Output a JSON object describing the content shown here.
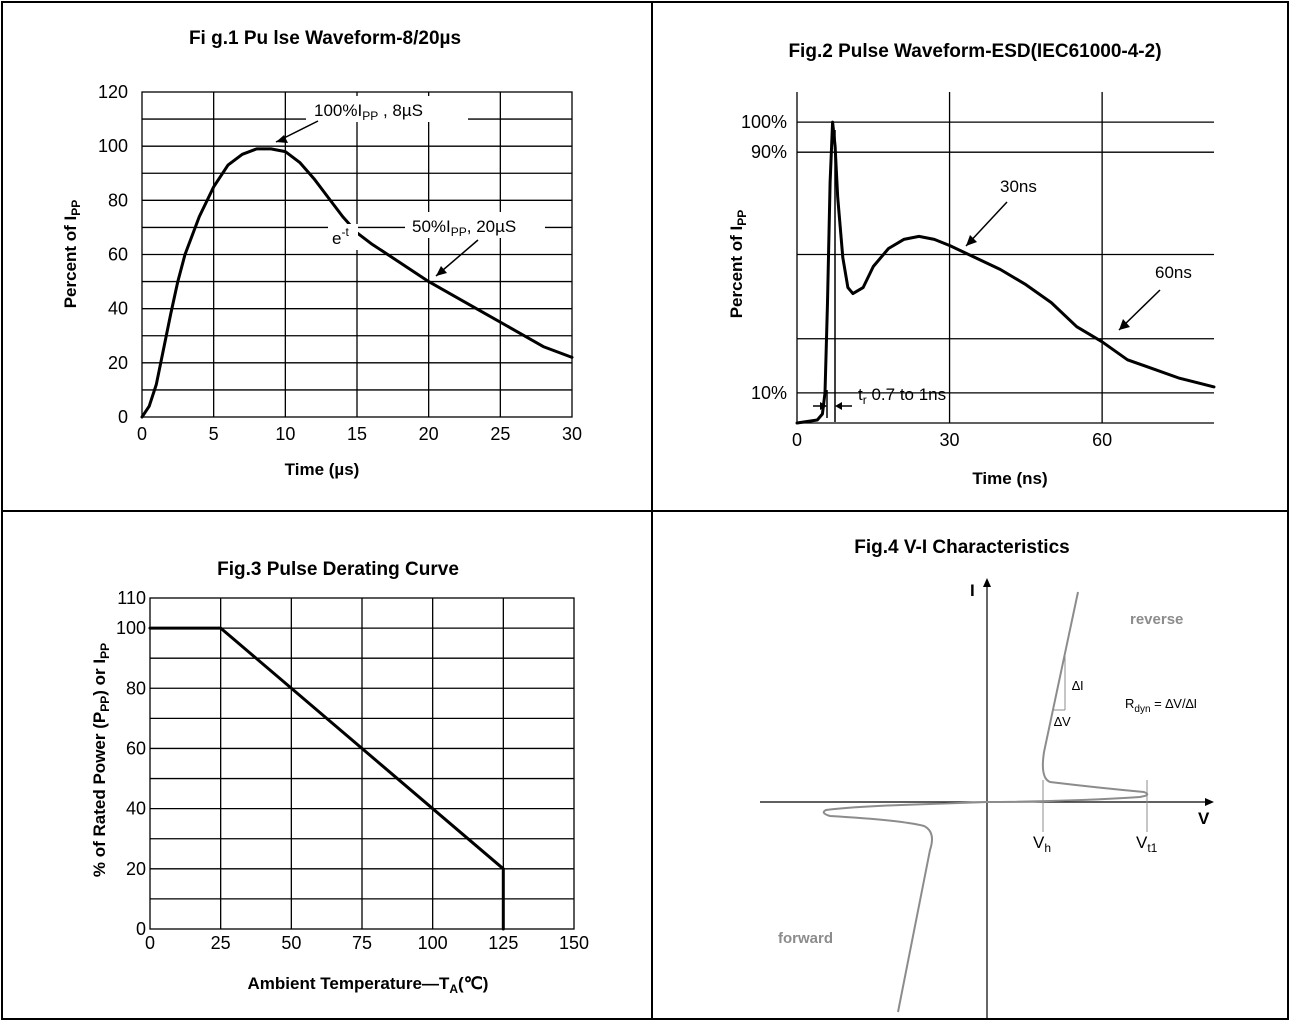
{
  "chart_data": [
    {
      "type": "line",
      "title": "Fi g.1 Pu lse Waveform-8/20µs",
      "xlabel": "Time (µs)",
      "ylabel_main": "Percent of I",
      "ylabel_sub": "PP",
      "xlim": [
        0,
        30
      ],
      "ylim": [
        0,
        120
      ],
      "xticks": [
        "0",
        "5",
        "10",
        "15",
        "20",
        "25",
        "30"
      ],
      "yticks": [
        "0",
        "20",
        "40",
        "60",
        "80",
        "100",
        "120"
      ],
      "grid": true,
      "x": [
        0,
        0.5,
        1,
        1.5,
        2,
        2.5,
        3,
        4,
        5,
        6,
        7,
        8,
        9,
        10,
        11,
        12,
        13,
        14,
        15,
        16,
        18,
        20,
        22,
        24,
        26,
        28,
        30
      ],
      "y": [
        0,
        4,
        12,
        25,
        38,
        50,
        60,
        74,
        85,
        93,
        97,
        99,
        99,
        98,
        94,
        88,
        81,
        74,
        68,
        64,
        57,
        50,
        44,
        38,
        32,
        26,
        22
      ],
      "annotations": [
        {
          "main": "100%I",
          "sub": "PP",
          "tail": " , 8µS"
        },
        {
          "main": "50%I",
          "sub": "PP",
          "tail": ", 20µS"
        },
        {
          "main": "e",
          "sup": "-t"
        }
      ]
    },
    {
      "type": "line",
      "title": "Fig.2 Pulse Waveform-ESD(IEC61000-4-2)",
      "xlabel": "Time (ns)",
      "ylabel_main": "Percent of I",
      "ylabel_sub": "PP",
      "xlim": [
        0,
        82
      ],
      "ylim": [
        0,
        110
      ],
      "xticks": [
        "0",
        "30",
        "60"
      ],
      "yticks": [
        "10%",
        "90%",
        "100%"
      ],
      "grid": true,
      "x": [
        0,
        4,
        5,
        5.5,
        6,
        6.5,
        7,
        7.5,
        8,
        9,
        10,
        11,
        13,
        15,
        18,
        21,
        24,
        27,
        30,
        35,
        40,
        45,
        50,
        55,
        60,
        65,
        70,
        75,
        82
      ],
      "y": [
        0,
        1,
        3,
        10,
        40,
        80,
        100,
        92,
        75,
        55,
        45,
        43,
        45,
        52,
        58,
        61,
        62,
        61,
        59,
        55,
        51,
        46,
        40,
        32,
        27,
        21,
        18,
        15,
        12
      ],
      "annotations": [
        {
          "text": "30ns"
        },
        {
          "text": "60ns"
        },
        {
          "main": "t",
          "sub": "r",
          "tail": " 0.7 to 1ns"
        }
      ]
    },
    {
      "type": "line",
      "title": "Fig.3 Pulse Derating Curve",
      "xlabel_main": "Ambient Temperature—T",
      "xlabel_sub": "A",
      "xlabel_tail": "(℃)",
      "ylabel_a": "% of Rated Power (P",
      "ylabel_b": "PP",
      "ylabel_c": ") or I",
      "ylabel_d": "PP",
      "xlim": [
        0,
        150
      ],
      "ylim": [
        0,
        110
      ],
      "xticks": [
        "0",
        "25",
        "50",
        "75",
        "100",
        "125",
        "150"
      ],
      "yticks": [
        "0",
        "20",
        "40",
        "60",
        "80",
        "100",
        "110"
      ],
      "grid": true,
      "x": [
        0,
        25,
        125,
        125
      ],
      "y": [
        100,
        100,
        20,
        0
      ]
    },
    {
      "type": "line",
      "title": "Fig.4 V-I Characteristics",
      "axis_v": "V",
      "axis_i": "I",
      "region_reverse": "reverse",
      "region_forward": "forward",
      "label_vh": "V",
      "label_vh_sub": "h",
      "label_vt1": "V",
      "label_vt1_sub": "t1",
      "label_di": "∆I",
      "label_dv": "∆V",
      "rdyn_main": "R",
      "rdyn_sub": "dyn",
      "rdyn_tail": " = ∆V/∆I"
    }
  ]
}
